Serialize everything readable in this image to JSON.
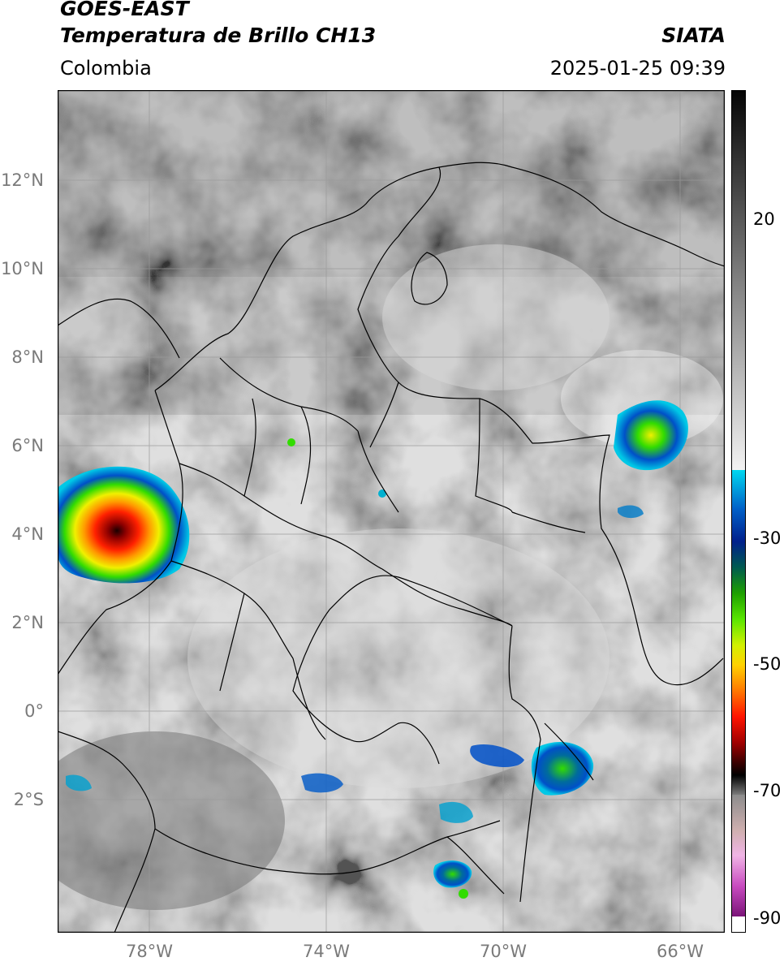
{
  "header": {
    "title_line1": "GOES-EAST",
    "title_line2": "Temperatura de Brillo CH13",
    "region": "Colombia",
    "organization": "SIATA",
    "datetime": "2025-01-25 09:39"
  },
  "axes": {
    "lat_labels": [
      "12°N",
      "10°N",
      "8°N",
      "6°N",
      "4°N",
      "2°N",
      "0°",
      "2°S"
    ],
    "lon_labels": [
      "78°W",
      "74°W",
      "70°W",
      "66°W"
    ],
    "lon_range": [
      -80.1,
      -65.0
    ],
    "lat_range": [
      -4.9,
      14.1
    ]
  },
  "colorbar": {
    "tick_labels": [
      "20",
      "-30",
      "-50",
      "-70",
      "-90"
    ],
    "tick_values": [
      20,
      -30,
      -50,
      -70,
      -90
    ],
    "range": [
      -92,
      37
    ],
    "unit_note": ""
  },
  "colors": {
    "cold_cloud": "#ff0000",
    "cyan": "#00c8e6",
    "blue": "#0050c8",
    "green": "#32dc00",
    "yellow": "#f0f000",
    "orange": "#ff8c00",
    "magenta": "#d24bc8"
  }
}
